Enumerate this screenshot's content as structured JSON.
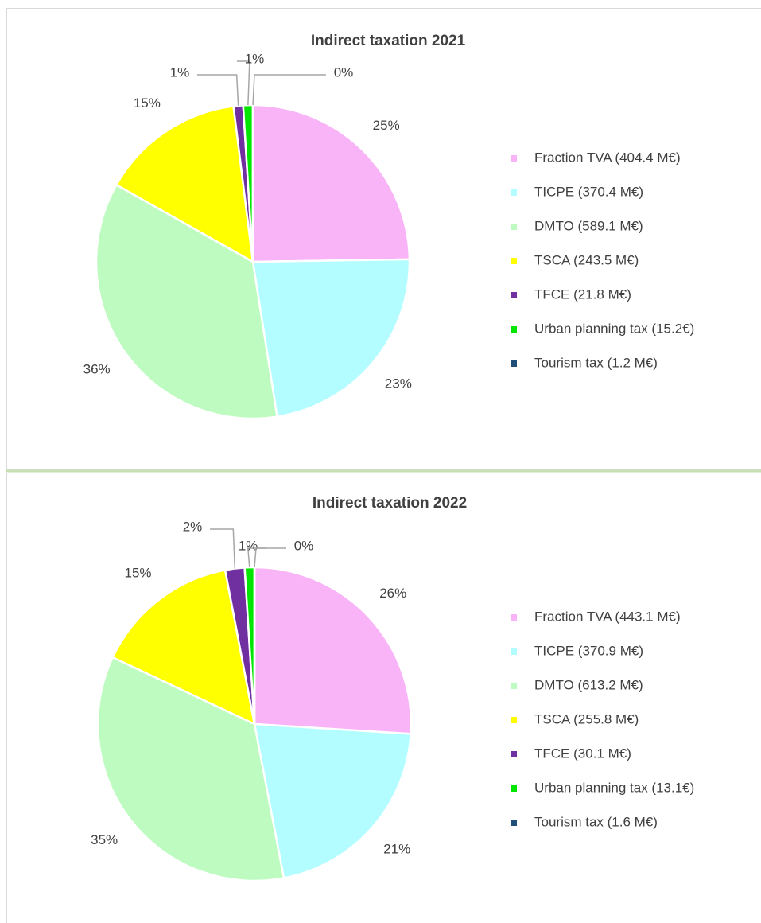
{
  "chart_data": [
    {
      "type": "pie",
      "title": "Indirect taxation 2021",
      "categories": [
        "Fraction TVA (404.4 M€)",
        "TICPE (370.4 M€)",
        "DMTO (589.1 M€)",
        "TSCA (243.5 M€)",
        "TFCE (21.8 M€)",
        "Urban planning tax (15.2€)",
        "Tourism tax (1.2 M€)"
      ],
      "values": [
        25,
        23,
        36,
        15,
        1,
        1,
        0
      ],
      "value_labels": [
        "25%",
        "23%",
        "36%",
        "15%",
        "1%",
        "1%",
        "0%"
      ],
      "colors": [
        "#f9b4f7",
        "#b3fcff",
        "#bdfbc0",
        "#ffff00",
        "#7030a0",
        "#00e600",
        "#1f4e79"
      ]
    },
    {
      "type": "pie",
      "title": "Indirect taxation 2022",
      "categories": [
        "Fraction TVA (443.1 M€)",
        "TICPE (370.9 M€)",
        "DMTO (613.2 M€)",
        "TSCA (255.8 M€)",
        "TFCE (30.1 M€)",
        "Urban planning tax (13.1€)",
        "Tourism tax (1.6 M€)"
      ],
      "values": [
        26,
        21,
        35,
        15,
        2,
        1,
        0
      ],
      "value_labels": [
        "26%",
        "21%",
        "35%",
        "15%",
        "2%",
        "1%",
        "0%"
      ],
      "colors": [
        "#f9b4f7",
        "#b3fcff",
        "#bdfbc0",
        "#ffff00",
        "#7030a0",
        "#00e600",
        "#1f4e79"
      ]
    }
  ]
}
